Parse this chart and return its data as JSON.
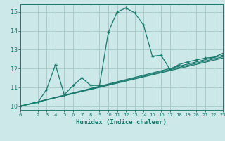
{
  "xlabel": "Humidex (Indice chaleur)",
  "background_color": "#cce8e8",
  "grid_color": "#aacccc",
  "line_color": "#1a7a6e",
  "xlim": [
    0,
    23
  ],
  "ylim": [
    9.8,
    15.4
  ],
  "xticks": [
    0,
    2,
    3,
    4,
    5,
    6,
    7,
    8,
    9,
    10,
    11,
    12,
    13,
    14,
    15,
    16,
    17,
    18,
    19,
    20,
    21,
    22,
    23
  ],
  "yticks": [
    10,
    11,
    12,
    13,
    14,
    15
  ],
  "main_x": [
    0,
    2,
    3,
    4,
    4,
    5,
    6,
    7,
    8,
    9,
    10,
    11,
    12,
    13,
    14,
    15,
    16,
    17,
    18,
    19,
    20,
    21,
    22,
    23
  ],
  "main_y": [
    10.0,
    10.2,
    10.9,
    12.2,
    12.2,
    10.6,
    11.1,
    11.5,
    11.1,
    11.1,
    13.9,
    15.0,
    15.2,
    14.95,
    14.3,
    12.65,
    12.7,
    11.95,
    12.2,
    12.35,
    12.45,
    12.55,
    12.6,
    12.8
  ],
  "line1_x": [
    0,
    23
  ],
  "line1_y": [
    10.0,
    12.55
  ],
  "line2_x": [
    0,
    23
  ],
  "line2_y": [
    10.0,
    12.62
  ],
  "line3_x": [
    0,
    23
  ],
  "line3_y": [
    10.0,
    12.7
  ]
}
